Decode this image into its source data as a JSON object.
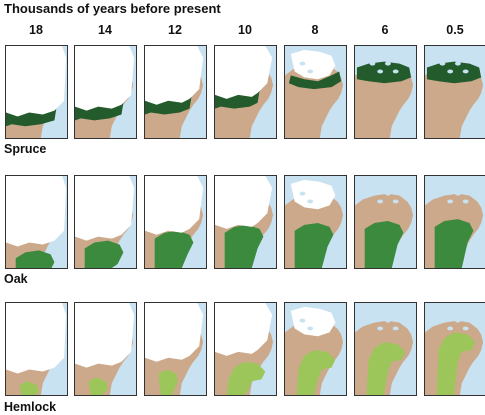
{
  "title": "Thousands of years before present",
  "time_labels": [
    "18",
    "14",
    "12",
    "10",
    "8",
    "6",
    "0.5"
  ],
  "species": [
    "Spruce",
    "Oak",
    "Hemlock"
  ],
  "colors": {
    "ocean": "#c9e2f2",
    "land": "#cda98c",
    "ice": "#ffffff",
    "spruce": "#235b2c",
    "oak": "#3b8a3e",
    "hemlock": "#9dc65a"
  }
}
